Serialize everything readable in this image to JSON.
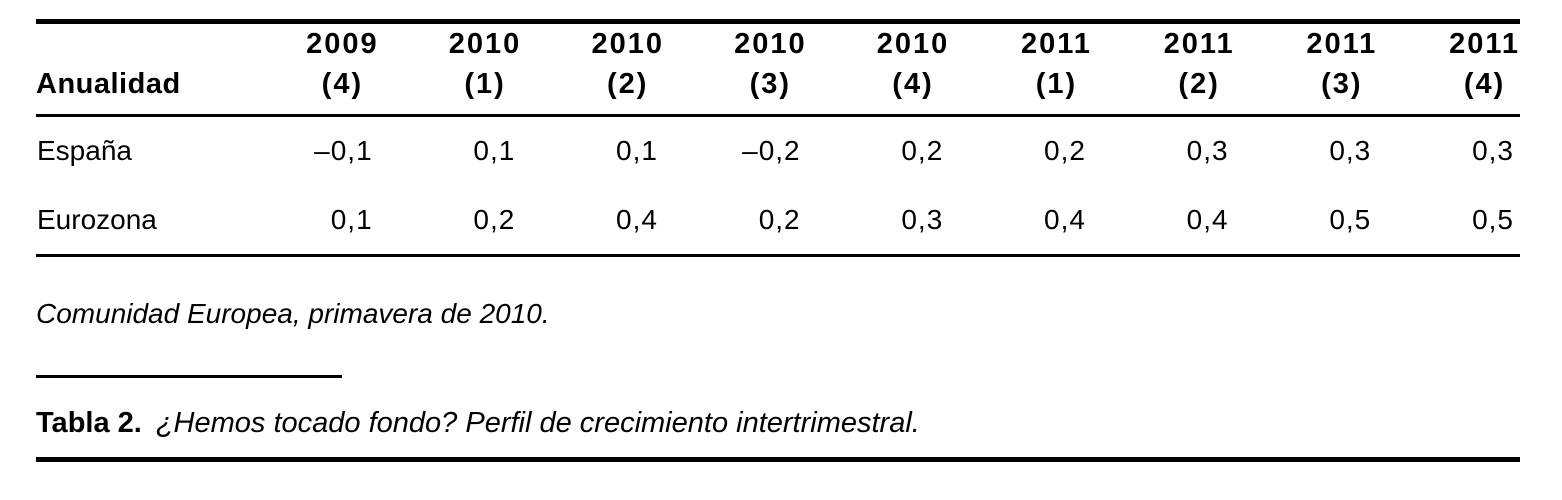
{
  "table": {
    "corner_label": "Anualidad",
    "columns": [
      {
        "year": "2009",
        "quarter": "(4)"
      },
      {
        "year": "2010",
        "quarter": "(1)"
      },
      {
        "year": "2010",
        "quarter": "(2)"
      },
      {
        "year": "2010",
        "quarter": "(3)"
      },
      {
        "year": "2010",
        "quarter": "(4)"
      },
      {
        "year": "2011",
        "quarter": "(1)"
      },
      {
        "year": "2011",
        "quarter": "(2)"
      },
      {
        "year": "2011",
        "quarter": "(3)"
      },
      {
        "year": "2011",
        "quarter": "(4)"
      }
    ],
    "rows": [
      {
        "label": "España",
        "values": [
          "–0,1",
          "0,1",
          "0,1",
          "–0,2",
          "0,2",
          "0,2",
          "0,3",
          "0,3",
          "0,3"
        ]
      },
      {
        "label": "Eurozona",
        "values": [
          "0,1",
          "0,2",
          "0,4",
          "0,2",
          "0,3",
          "0,4",
          "0,4",
          "0,5",
          "0,5"
        ]
      }
    ]
  },
  "note": "Comunidad Europea, primavera de 2010.",
  "caption": {
    "label": "Tabla 2.",
    "text": "¿Hemos tocado fondo? Perfil de crecimiento intertrimestral."
  },
  "colors": {
    "text": "#000000",
    "background": "#ffffff",
    "rule": "#000000"
  }
}
